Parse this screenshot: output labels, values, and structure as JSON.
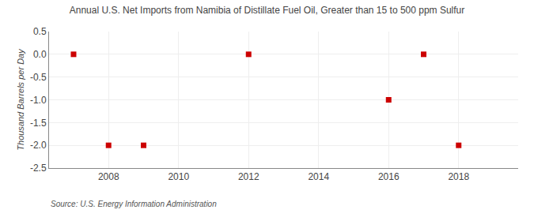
{
  "chart_data": {
    "type": "scatter",
    "title": "Annual U.S. Net Imports from Namibia of Distillate Fuel Oil, Greater than 15 to 500 ppm Sulfur",
    "ylabel": "Thousand Barrels per Day",
    "annotations": [
      "Source: U.S. Energy Information Administration"
    ],
    "x": [
      2007,
      2008,
      2009,
      2012,
      2016,
      2017,
      2018
    ],
    "values": [
      0.0,
      -2.0,
      -2.0,
      0.0,
      -1.0,
      0.0,
      -2.0
    ],
    "color": "#cc0000",
    "marker": "square",
    "xlim": [
      2006.3,
      2019.7
    ],
    "ylim": [
      -2.5,
      0.5
    ],
    "xticks": [
      2008,
      2010,
      2012,
      2014,
      2016,
      2018
    ],
    "yticks": [
      0.5,
      {
        "value": 0.0,
        "label": "0.0"
      },
      -0.5,
      {
        "value": -1.0,
        "label": "-1.0"
      },
      -1.5,
      {
        "value": -2.0,
        "label": "-2.0"
      },
      -2.5
    ],
    "grid": true
  }
}
